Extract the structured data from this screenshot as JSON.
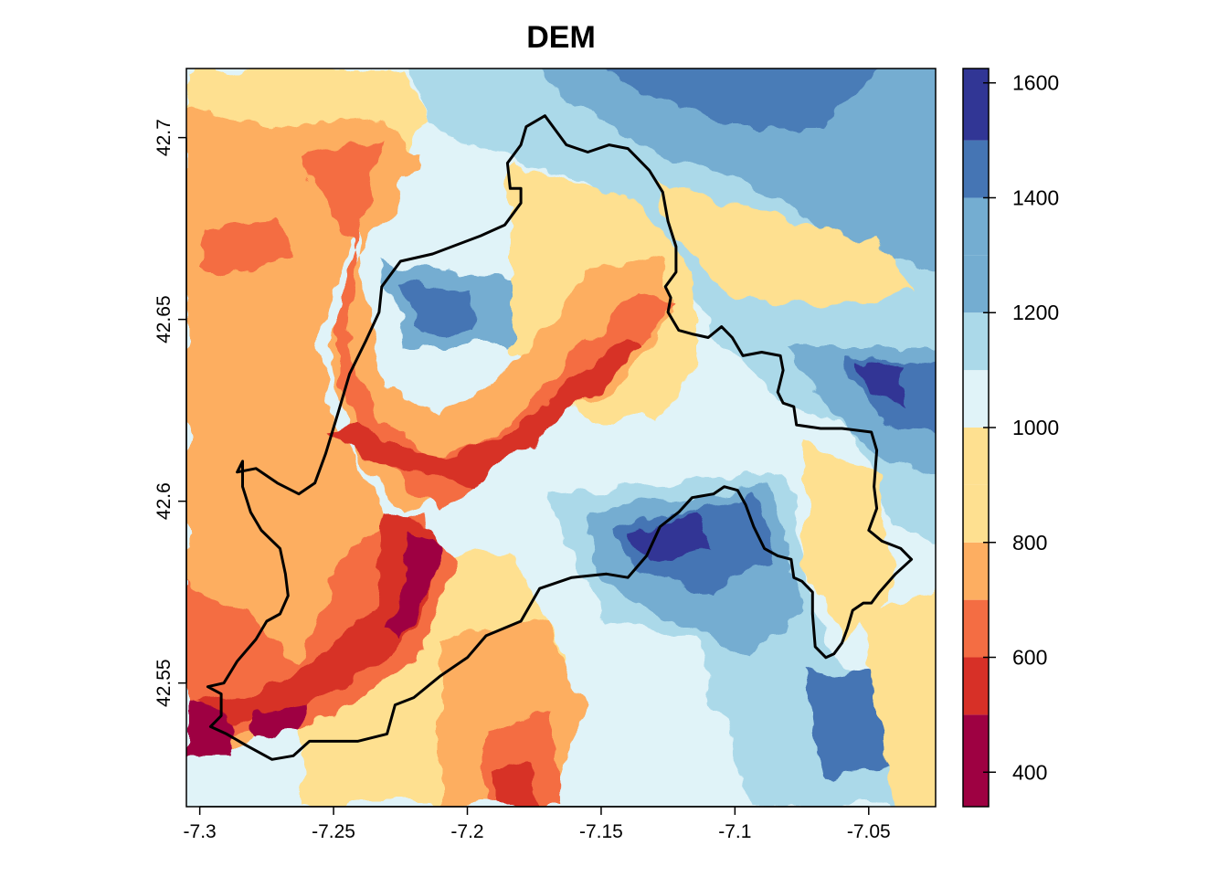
{
  "title": "DEM",
  "chart_data": {
    "type": "heatmap",
    "title": "DEM",
    "x_ticks": [
      -7.3,
      -7.25,
      -7.2,
      -7.15,
      -7.1,
      -7.05
    ],
    "x_tick_labels": [
      "-7.3",
      "-7.25",
      "-7.2",
      "-7.15",
      "-7.1",
      "-7.05"
    ],
    "y_ticks": [
      42.55,
      42.6,
      42.65,
      42.7
    ],
    "y_tick_labels": [
      "42.55",
      "42.6",
      "42.65",
      "42.7"
    ],
    "xlim": [
      -7.305,
      -7.025
    ],
    "ylim": [
      42.516,
      42.719
    ],
    "legend": {
      "placement": "right",
      "range": [
        340,
        1625
      ],
      "ticks": [
        400,
        600,
        800,
        1000,
        1200,
        1400,
        1600
      ],
      "tick_labels": [
        "400",
        "600",
        "800",
        "1000",
        "1200",
        "1400",
        "1600"
      ],
      "bins": [
        {
          "from": 340,
          "to": 500,
          "color": "#9e0142"
        },
        {
          "from": 500,
          "to": 600,
          "color": "#d73027"
        },
        {
          "from": 600,
          "to": 700,
          "color": "#f46d43"
        },
        {
          "from": 700,
          "to": 800,
          "color": "#fdae61"
        },
        {
          "from": 800,
          "to": 900,
          "color": "#fee090"
        },
        {
          "from": 900,
          "to": 1000,
          "color": "#fee090"
        },
        {
          "from": 1000,
          "to": 1100,
          "color": "#e0f3f8"
        },
        {
          "from": 1100,
          "to": 1200,
          "color": "#abd9e9"
        },
        {
          "from": 1200,
          "to": 1300,
          "color": "#74add1"
        },
        {
          "from": 1300,
          "to": 1400,
          "color": "#74add1"
        },
        {
          "from": 1400,
          "to": 1500,
          "color": "#4575b4"
        },
        {
          "from": 1500,
          "to": 1625,
          "color": "#313695"
        }
      ]
    },
    "boundary": [
      [
        -7.171,
        42.706
      ],
      [
        -7.163,
        42.698
      ],
      [
        -7.155,
        42.696
      ],
      [
        -7.147,
        42.698
      ],
      [
        -7.14,
        42.697
      ],
      [
        -7.132,
        42.691
      ],
      [
        -7.127,
        42.685
      ],
      [
        -7.125,
        42.677
      ],
      [
        -7.122,
        42.67
      ],
      [
        -7.122,
        42.663
      ],
      [
        -7.126,
        42.659
      ],
      [
        -7.124,
        42.656
      ],
      [
        -7.125,
        42.652
      ],
      [
        -7.121,
        42.647
      ],
      [
        -7.116,
        42.646
      ],
      [
        -7.11,
        42.645
      ],
      [
        -7.105,
        42.648
      ],
      [
        -7.101,
        42.645
      ],
      [
        -7.097,
        42.64
      ],
      [
        -7.09,
        42.641
      ],
      [
        -7.083,
        42.64
      ],
      [
        -7.082,
        42.636
      ],
      [
        -7.084,
        42.63
      ],
      [
        -7.082,
        42.627
      ],
      [
        -7.078,
        42.626
      ],
      [
        -7.077,
        42.621
      ],
      [
        -7.068,
        42.62
      ],
      [
        -7.06,
        42.62
      ],
      [
        -7.049,
        42.619
      ],
      [
        -7.047,
        42.614
      ],
      [
        -7.048,
        42.604
      ],
      [
        -7.047,
        42.598
      ],
      [
        -7.05,
        42.592
      ],
      [
        -7.045,
        42.589
      ],
      [
        -7.038,
        42.587
      ],
      [
        -7.034,
        42.584
      ],
      [
        -7.04,
        42.58
      ],
      [
        -7.046,
        42.575
      ],
      [
        -7.049,
        42.572
      ],
      [
        -7.052,
        42.572
      ],
      [
        -7.056,
        42.57
      ],
      [
        -7.058,
        42.565
      ],
      [
        -7.06,
        42.561
      ],
      [
        -7.063,
        42.558
      ],
      [
        -7.066,
        42.557
      ],
      [
        -7.07,
        42.56
      ],
      [
        -7.071,
        42.569
      ],
      [
        -7.071,
        42.575
      ],
      [
        -7.075,
        42.578
      ],
      [
        -7.078,
        42.579
      ],
      [
        -7.079,
        42.584
      ],
      [
        -7.084,
        42.585
      ],
      [
        -7.089,
        42.587
      ],
      [
        -7.093,
        42.593
      ],
      [
        -7.096,
        42.599
      ],
      [
        -7.099,
        42.603
      ],
      [
        -7.104,
        42.604
      ],
      [
        -7.108,
        42.602
      ],
      [
        -7.116,
        42.601
      ],
      [
        -7.121,
        42.597
      ],
      [
        -7.128,
        42.593
      ],
      [
        -7.133,
        42.585
      ],
      [
        -7.14,
        42.579
      ],
      [
        -7.148,
        42.58
      ],
      [
        -7.161,
        42.579
      ],
      [
        -7.173,
        42.576
      ],
      [
        -7.18,
        42.567
      ],
      [
        -7.193,
        42.563
      ],
      [
        -7.2,
        42.557
      ],
      [
        -7.21,
        42.552
      ],
      [
        -7.22,
        42.546
      ],
      [
        -7.227,
        42.544
      ],
      [
        -7.23,
        42.536
      ],
      [
        -7.241,
        42.534
      ],
      [
        -7.259,
        42.534
      ],
      [
        -7.265,
        42.53
      ],
      [
        -7.273,
        42.529
      ],
      [
        -7.283,
        42.533
      ],
      [
        -7.29,
        42.536
      ],
      [
        -7.296,
        42.538
      ],
      [
        -7.292,
        42.541
      ],
      [
        -7.292,
        42.547
      ],
      [
        -7.297,
        42.549
      ],
      [
        -7.291,
        42.55
      ],
      [
        -7.286,
        42.556
      ],
      [
        -7.279,
        42.562
      ],
      [
        -7.275,
        42.567
      ],
      [
        -7.27,
        42.569
      ],
      [
        -7.267,
        42.574
      ],
      [
        -7.268,
        42.58
      ],
      [
        -7.27,
        42.587
      ],
      [
        -7.277,
        42.592
      ],
      [
        -7.281,
        42.597
      ],
      [
        -7.284,
        42.604
      ],
      [
        -7.284,
        42.611
      ],
      [
        -7.286,
        42.608
      ],
      [
        -7.279,
        42.609
      ],
      [
        -7.271,
        42.605
      ],
      [
        -7.263,
        42.602
      ],
      [
        -7.257,
        42.605
      ],
      [
        -7.253,
        42.613
      ],
      [
        -7.248,
        42.625
      ],
      [
        -7.244,
        42.635
      ],
      [
        -7.238,
        42.644
      ],
      [
        -7.233,
        42.652
      ],
      [
        -7.232,
        42.659
      ],
      [
        -7.225,
        42.666
      ],
      [
        -7.213,
        42.668
      ],
      [
        -7.195,
        42.673
      ],
      [
        -7.186,
        42.676
      ],
      [
        -7.18,
        42.682
      ],
      [
        -7.18,
        42.686
      ],
      [
        -7.184,
        42.686
      ],
      [
        -7.185,
        42.693
      ],
      [
        -7.18,
        42.698
      ],
      [
        -7.178,
        42.703
      ],
      [
        -7.171,
        42.706
      ]
    ]
  }
}
